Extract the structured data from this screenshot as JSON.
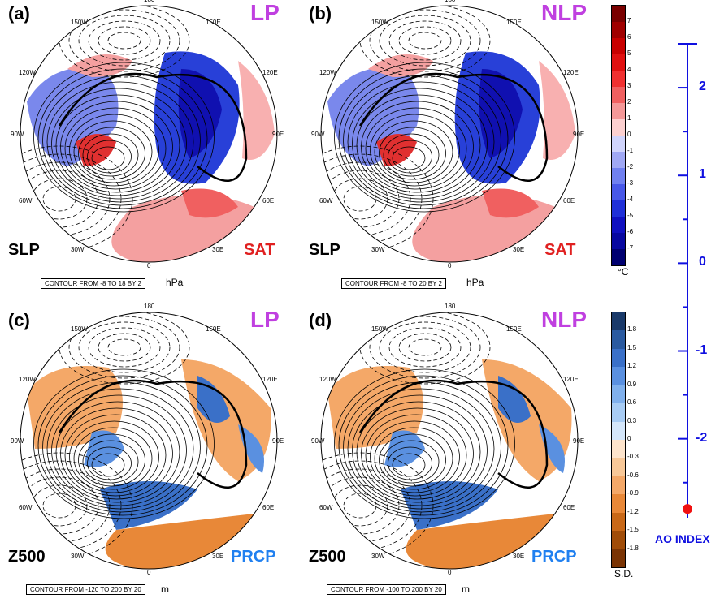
{
  "panels": [
    {
      "label": "(a)",
      "type": "LP",
      "left_var": "SLP",
      "right_var": "SAT",
      "right_color": "#e02020",
      "contour": "CONTOUR FROM -8 TO 18 BY 2",
      "unit": "hPa",
      "lon_labels": {
        "top": "180",
        "tl": "150W",
        "tr": "150E",
        "ul": "120W",
        "ur": "120E",
        "l": "90W",
        "r": "90E",
        "ll": "60W",
        "lr": "60E",
        "bl": "30W",
        "br": "30E",
        "bottom": "0"
      }
    },
    {
      "label": "(b)",
      "type": "NLP",
      "left_var": "SLP",
      "right_var": "SAT",
      "right_color": "#e02020",
      "contour": "CONTOUR FROM -8 TO 20 BY 2",
      "unit": "hPa",
      "lon_labels": {
        "top": "180",
        "tl": "150W",
        "tr": "150E",
        "ul": "120W",
        "ur": "120E",
        "l": "90W",
        "r": "90E",
        "ll": "60W",
        "lr": "60E",
        "bl": "30W",
        "br": "30E",
        "bottom": "0"
      }
    },
    {
      "label": "(c)",
      "type": "LP",
      "left_var": "Z500",
      "right_var": "PRCP",
      "right_color": "#2080f0",
      "contour": "CONTOUR FROM -120 TO 200 BY 20",
      "unit": "m",
      "lon_labels": {
        "top": "180",
        "tl": "150W",
        "tr": "150E",
        "ul": "120W",
        "ur": "120E",
        "l": "90W",
        "r": "90E",
        "ll": "60W",
        "lr": "60E",
        "bl": "30W",
        "br": "30E",
        "bottom": "0"
      }
    },
    {
      "label": "(d)",
      "type": "NLP",
      "left_var": "Z500",
      "right_var": "PRCP",
      "right_color": "#2080f0",
      "contour": "CONTOUR FROM -100 TO 200 BY 20",
      "unit": "m",
      "lon_labels": {
        "top": "180",
        "tl": "150W",
        "tr": "150E",
        "ul": "120W",
        "ur": "120E",
        "l": "90W",
        "r": "90E",
        "ll": "60W",
        "lr": "60E",
        "bl": "30W",
        "br": "30E",
        "bottom": "0"
      }
    }
  ],
  "colorbar_sat": {
    "unit": "°C",
    "ticks": [
      "7",
      "6",
      "5",
      "4",
      "3",
      "2",
      "1",
      "0",
      "-1",
      "-2",
      "-3",
      "-4",
      "-5",
      "-6",
      "-7"
    ],
    "colors": [
      "#7a0000",
      "#a00000",
      "#c80000",
      "#e01010",
      "#f03030",
      "#f06060",
      "#f49898",
      "#fcd0d0",
      "#d0d4fc",
      "#a0a8f4",
      "#7080f0",
      "#4858e8",
      "#2030d8",
      "#1010c0",
      "#0808a0",
      "#000070"
    ]
  },
  "colorbar_prcp": {
    "unit": "S.D.",
    "ticks": [
      "1.8",
      "1.5",
      "1.2",
      "0.9",
      "0.6",
      "0.3",
      "0",
      "-0.3",
      "-0.6",
      "-0.9",
      "-1.2",
      "-1.5",
      "-1.8"
    ],
    "colors": [
      "#1a3a6a",
      "#2a5aa0",
      "#3a70c8",
      "#5a90e0",
      "#80b0ec",
      "#a8ccf4",
      "#d4e6fa",
      "#fde4cc",
      "#f8c898",
      "#f4a868",
      "#e88838",
      "#c86818",
      "#a04c08",
      "#7a3404"
    ]
  },
  "ao_axis": {
    "title": "AO INDEX",
    "ticks": [
      "2",
      "1",
      "0",
      "-1",
      "-2"
    ],
    "color": "#1010e0",
    "marker_color": "#f01010",
    "marker_value": -2.8
  }
}
